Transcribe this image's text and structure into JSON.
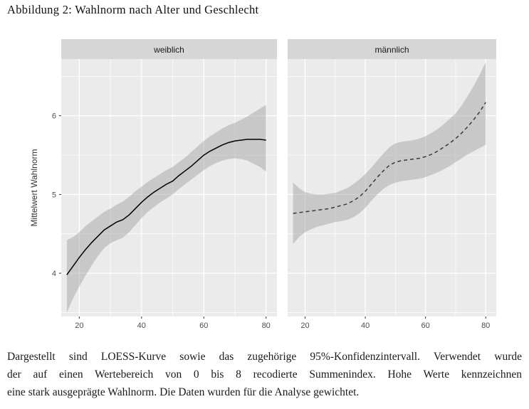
{
  "title": "Abbildung 2: Wahlnorm nach Alter und Geschlecht",
  "caption": {
    "lines": [
      "Dargestellt sind LOESS-Kurve sowie das zugehörige 95%-Konfidenzintervall. Verwendet wurde",
      "der auf einen Wertebereich von 0 bis 8 recodierte Summenindex. Hohe Werte kennzeichnen",
      "eine stark ausgeprägte Wahlnorm. Die Daten wurden für die Analyse gewichtet."
    ]
  },
  "chart_data": {
    "type": "line",
    "title": "Wahlnorm nach Alter und Geschlecht",
    "xlabel": "",
    "ylabel": "Mittelwert Wahlnorm",
    "xlim": [
      14.2,
      83.5
    ],
    "ylim": [
      3.45,
      6.72
    ],
    "x_ticks": [
      20,
      40,
      60,
      80
    ],
    "x_minor": [
      30,
      50,
      70
    ],
    "y_ticks": [
      4,
      5,
      6
    ],
    "y_minor": [
      3.5,
      4.5,
      5.5,
      6.5
    ],
    "grid": true,
    "legend": "none",
    "colors": {
      "panel_bg": "#ebebeb",
      "strip_bg": "#d6d6d6",
      "strip_text": "#1a1a1a",
      "grid": "#ffffff",
      "ribbon": "#9e9e9e",
      "axis_text": "#4d4d4d",
      "axis_title": "#333333"
    },
    "facets": [
      {
        "label": "weiblich",
        "line_style": "solid",
        "line_color": "#000000",
        "x": [
          16,
          18,
          20,
          22,
          24,
          26,
          28,
          30,
          32,
          34,
          36,
          38,
          40,
          42,
          44,
          46,
          48,
          50,
          52,
          54,
          56,
          58,
          60,
          62,
          64,
          66,
          68,
          70,
          72,
          74,
          76,
          78,
          80
        ],
        "y": [
          3.98,
          4.09,
          4.2,
          4.3,
          4.39,
          4.47,
          4.55,
          4.6,
          4.65,
          4.68,
          4.74,
          4.82,
          4.9,
          4.97,
          5.03,
          5.08,
          5.13,
          5.17,
          5.24,
          5.3,
          5.36,
          5.43,
          5.5,
          5.55,
          5.59,
          5.63,
          5.66,
          5.68,
          5.69,
          5.7,
          5.7,
          5.7,
          5.69
        ],
        "ci_lower": [
          3.5,
          3.68,
          3.83,
          3.97,
          4.1,
          4.22,
          4.32,
          4.38,
          4.42,
          4.45,
          4.52,
          4.61,
          4.7,
          4.78,
          4.84,
          4.9,
          4.95,
          5.0,
          5.07,
          5.13,
          5.19,
          5.25,
          5.31,
          5.36,
          5.4,
          5.43,
          5.45,
          5.46,
          5.45,
          5.43,
          5.39,
          5.35,
          5.29
        ],
        "ci_upper": [
          4.42,
          4.46,
          4.52,
          4.6,
          4.66,
          4.72,
          4.78,
          4.82,
          4.87,
          4.91,
          4.97,
          5.04,
          5.1,
          5.16,
          5.21,
          5.26,
          5.31,
          5.35,
          5.41,
          5.47,
          5.54,
          5.61,
          5.68,
          5.74,
          5.79,
          5.84,
          5.88,
          5.91,
          5.95,
          5.99,
          6.04,
          6.09,
          6.14
        ]
      },
      {
        "label": "männlich",
        "line_style": "dashed",
        "line_color": "#3a3a3a",
        "x": [
          16,
          18,
          20,
          22,
          24,
          26,
          28,
          30,
          32,
          34,
          36,
          38,
          40,
          42,
          44,
          46,
          48,
          50,
          52,
          54,
          56,
          58,
          60,
          62,
          64,
          66,
          68,
          70,
          72,
          74,
          76,
          78,
          80
        ],
        "y": [
          4.76,
          4.77,
          4.78,
          4.79,
          4.8,
          4.81,
          4.82,
          4.84,
          4.86,
          4.88,
          4.92,
          4.97,
          5.04,
          5.13,
          5.22,
          5.3,
          5.37,
          5.41,
          5.43,
          5.44,
          5.45,
          5.46,
          5.48,
          5.51,
          5.55,
          5.6,
          5.65,
          5.71,
          5.78,
          5.86,
          5.95,
          6.05,
          6.17
        ],
        "ci_lower": [
          4.37,
          4.46,
          4.52,
          4.56,
          4.59,
          4.61,
          4.63,
          4.65,
          4.66,
          4.68,
          4.71,
          4.76,
          4.83,
          4.92,
          5.0,
          5.07,
          5.12,
          5.15,
          5.17,
          5.18,
          5.19,
          5.2,
          5.22,
          5.25,
          5.28,
          5.32,
          5.36,
          5.41,
          5.46,
          5.51,
          5.55,
          5.59,
          5.63
        ],
        "ci_upper": [
          5.15,
          5.08,
          5.03,
          5.01,
          5.0,
          5.0,
          5.01,
          5.02,
          5.05,
          5.08,
          5.13,
          5.19,
          5.26,
          5.34,
          5.43,
          5.52,
          5.6,
          5.65,
          5.67,
          5.68,
          5.69,
          5.71,
          5.74,
          5.78,
          5.83,
          5.89,
          5.96,
          6.03,
          6.13,
          6.25,
          6.38,
          6.52,
          6.68
        ]
      }
    ]
  }
}
